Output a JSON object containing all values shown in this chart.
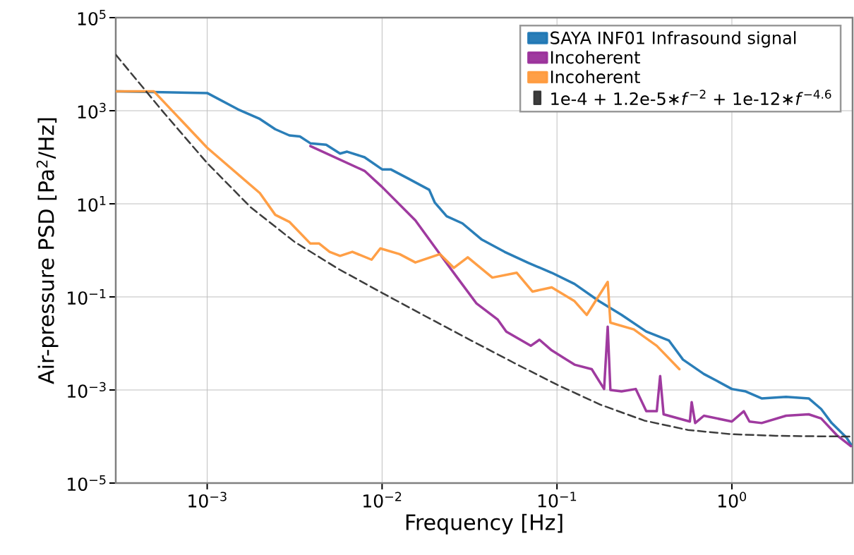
{
  "chart_data": {
    "type": "line",
    "xlabel": "Frequency [Hz]",
    "ylabel": "Air-pressure PSD [Pa$^{2}$/Hz]",
    "log": "xy",
    "grid": true,
    "legend": "top right",
    "xlim": [
      0.0003,
      4.9
    ],
    "ylim": [
      1e-05,
      100000
    ],
    "xticks": [
      {
        "value": 0.001,
        "label": "10$^{−3}$"
      },
      {
        "value": 0.01,
        "label": "10$^{−2}$"
      },
      {
        "value": 0.1,
        "label": "10$^{−1}$"
      },
      {
        "value": 1,
        "label": "10$^{0}$"
      }
    ],
    "yticks": [
      {
        "value": 1e-05,
        "label": "10$^{−5}$"
      },
      {
        "value": 0.001,
        "label": "10$^{−3}$"
      },
      {
        "value": 0.1,
        "label": "10$^{−1}$"
      },
      {
        "value": 10,
        "label": "10$^{1}$"
      },
      {
        "value": 1000,
        "label": "10$^{3}$"
      },
      {
        "value": 100000,
        "label": "10$^{5}$"
      }
    ],
    "series": [
      {
        "name": "SAYA INF01 Infrasound signal",
        "color": "#1f77b4",
        "x": [
          0.0003,
          0.001,
          0.0015,
          0.00198,
          0.00245,
          0.00295,
          0.00339,
          0.00389,
          0.00479,
          0.00575,
          0.00631,
          0.00794,
          0.01,
          0.0112,
          0.0141,
          0.0186,
          0.02,
          0.0234,
          0.0288,
          0.0372,
          0.0501,
          0.0684,
          0.0933,
          0.126,
          0.174,
          0.234,
          0.324,
          0.437,
          0.525,
          0.692,
          0.813,
          1,
          1.2,
          1.48,
          2.04,
          2.75,
          3.24,
          3.72,
          4.52,
          4.79
        ],
        "values": [
          2600,
          2400,
          1070,
          680,
          400,
          295,
          280,
          200,
          186,
          120,
          132,
          100,
          55,
          55,
          35,
          20,
          10.7,
          5.4,
          3.8,
          1.7,
          0.93,
          0.54,
          0.33,
          0.19,
          0.081,
          0.041,
          0.018,
          0.0115,
          0.0045,
          0.0022,
          0.0016,
          0.00105,
          0.00093,
          0.00066,
          0.00071,
          0.00066,
          0.00039,
          0.000195,
          9.5e-05,
          6.8e-05
        ]
      },
      {
        "name": "Incoherent",
        "color": "#9a2f9a",
        "x": [
          0.00389,
          0.00794,
          0.01,
          0.0155,
          0.0214,
          0.0269,
          0.0347,
          0.0457,
          0.0513,
          0.0708,
          0.0794,
          0.0933,
          0.126,
          0.158,
          0.186,
          0.195,
          0.202,
          0.234,
          0.282,
          0.324,
          0.372,
          0.389,
          0.407,
          0.575,
          0.589,
          0.617,
          0.692,
          1,
          1.17,
          1.26,
          1.48,
          2.04,
          2.75,
          3.24,
          3.98,
          4.79
        ],
        "values": [
          174,
          51,
          23,
          4.4,
          0.83,
          0.26,
          0.072,
          0.033,
          0.018,
          0.0089,
          0.012,
          0.0071,
          0.0035,
          0.0028,
          0.00105,
          0.023,
          0.001,
          0.00093,
          0.00105,
          0.00035,
          0.00035,
          0.002,
          0.0003,
          0.00021,
          0.00055,
          0.000195,
          0.00028,
          0.00021,
          0.00035,
          0.00021,
          0.000195,
          0.00028,
          0.0003,
          0.000245,
          0.000107,
          6.2e-05
        ]
      },
      {
        "name": "Incoherent",
        "color": "#ff9a3c",
        "x": [
          0.0003,
          0.000496,
          0.001,
          0.002,
          0.00245,
          0.00295,
          0.00389,
          0.00437,
          0.00501,
          0.00575,
          0.00676,
          0.00871,
          0.00977,
          0.0126,
          0.0155,
          0.0214,
          0.0257,
          0.0309,
          0.0427,
          0.0589,
          0.0724,
          0.0933,
          0.126,
          0.148,
          0.195,
          0.202,
          0.275,
          0.372,
          0.501
        ],
        "values": [
          2600,
          2600,
          160,
          17,
          5.8,
          4.1,
          1.4,
          1.4,
          0.93,
          0.76,
          0.93,
          0.63,
          1.1,
          0.83,
          0.55,
          0.83,
          0.42,
          0.71,
          0.26,
          0.33,
          0.13,
          0.16,
          0.081,
          0.041,
          0.21,
          0.028,
          0.02,
          0.0089,
          0.0028
        ]
      },
      {
        "name": "1e-4 + 1.2e-5∗*f*$^{−2}$ + 1e-12∗*f*$^{−4.6}$",
        "color": "#333333",
        "line_style": "dashed",
        "x": [
          0.0003,
          0.000562,
          0.001,
          0.00178,
          0.00316,
          0.00562,
          0.01,
          0.0178,
          0.0316,
          0.0562,
          0.1,
          0.178,
          0.316,
          0.562,
          1,
          1.78,
          3.16,
          4.9
        ],
        "values": [
          16000,
          929,
          75,
          8.3,
          1.52,
          0.4,
          0.122,
          0.038,
          0.0121,
          0.0039,
          0.0013,
          0.00048,
          0.00022,
          0.000138,
          0.000112,
          0.000104,
          0.000101,
          0.0001
        ]
      }
    ]
  }
}
